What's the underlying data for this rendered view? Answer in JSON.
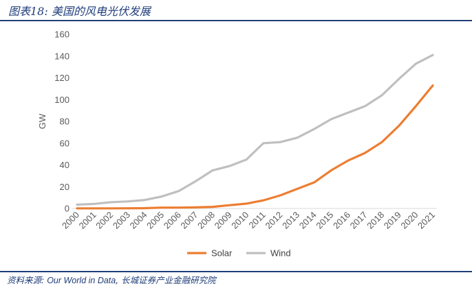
{
  "header": {
    "title": "图表18: 美国的风电光伏发展"
  },
  "footer": {
    "prefix": "资料来源: ",
    "source": "Our World in Data",
    "suffix": ", 长城证券产业金融研究院"
  },
  "chart_data": {
    "type": "line",
    "ylabel": "GW",
    "ylim": [
      0,
      160
    ],
    "yticks": [
      0,
      20,
      40,
      60,
      80,
      100,
      120,
      140,
      160
    ],
    "x": [
      "2000",
      "2001",
      "2002",
      "2003",
      "2004",
      "2005",
      "2006",
      "2007",
      "2008",
      "2009",
      "2010",
      "2011",
      "2012",
      "2013",
      "2014",
      "2015",
      "2016",
      "2017",
      "2018",
      "2019",
      "2020",
      "2021"
    ],
    "series": [
      {
        "name": "Solar",
        "color": "#ED7D31",
        "values": [
          0.1,
          0.1,
          0.1,
          0.2,
          0.3,
          0.8,
          0.8,
          1.0,
          1.5,
          3.0,
          4.5,
          7.5,
          12,
          18,
          24,
          35,
          44,
          51,
          61,
          76,
          94,
          113
        ]
      },
      {
        "name": "Wind",
        "color": "#BFBFBF",
        "values": [
          3.5,
          4.2,
          5.8,
          6.5,
          7.8,
          11,
          16,
          25,
          35,
          39,
          45,
          60,
          61,
          65,
          73,
          82,
          88,
          94,
          104,
          119,
          133,
          141
        ]
      }
    ],
    "legend": "bottom",
    "grid": false
  }
}
